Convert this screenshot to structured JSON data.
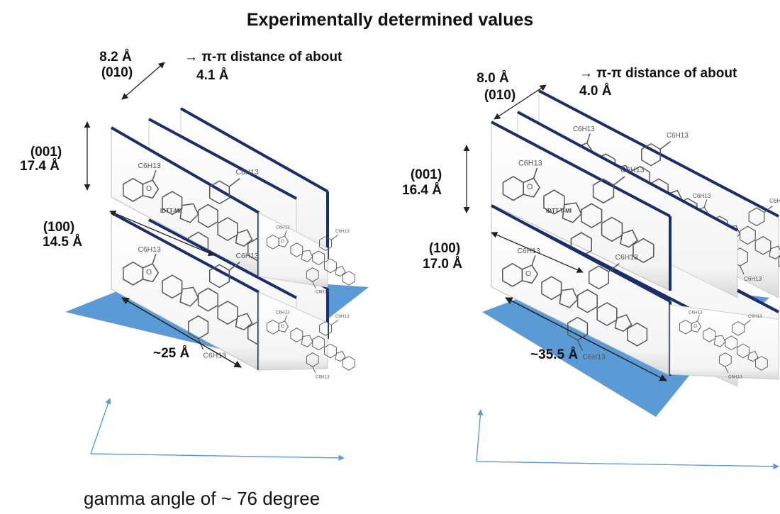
{
  "title": "Experimentally determined values",
  "caption": "gamma angle of ~ 76 degree",
  "colors": {
    "plane": "#5b9bd5",
    "sheet_edge": "#1a2e6b",
    "axis": "#5b9bd5",
    "arrow": "#222222"
  },
  "left": {
    "d010_value": "8.2 Å",
    "d010_index": "(010)",
    "pipi_text": "→ π-π distance of about",
    "pipi_value": "4.1 Å",
    "d001_index": "(001)",
    "d001_value": "17.4 Å",
    "d100_index": "(100)",
    "d100_value": "14.5 Å",
    "length": "~25 Å",
    "molecule_label": "IDTT-MI"
  },
  "right": {
    "d010_value": "8.0 Å",
    "d010_index": "(010)",
    "pipi_text": "→ π-π distance of about",
    "pipi_value": "4.0 Å",
    "d001_index": "(001)",
    "d001_value": "16.4 Å",
    "d100_index": "(100)",
    "d100_value": "17.0 Å",
    "length": "~35.5 Å",
    "molecule_label": "IDTT-T-MI"
  }
}
